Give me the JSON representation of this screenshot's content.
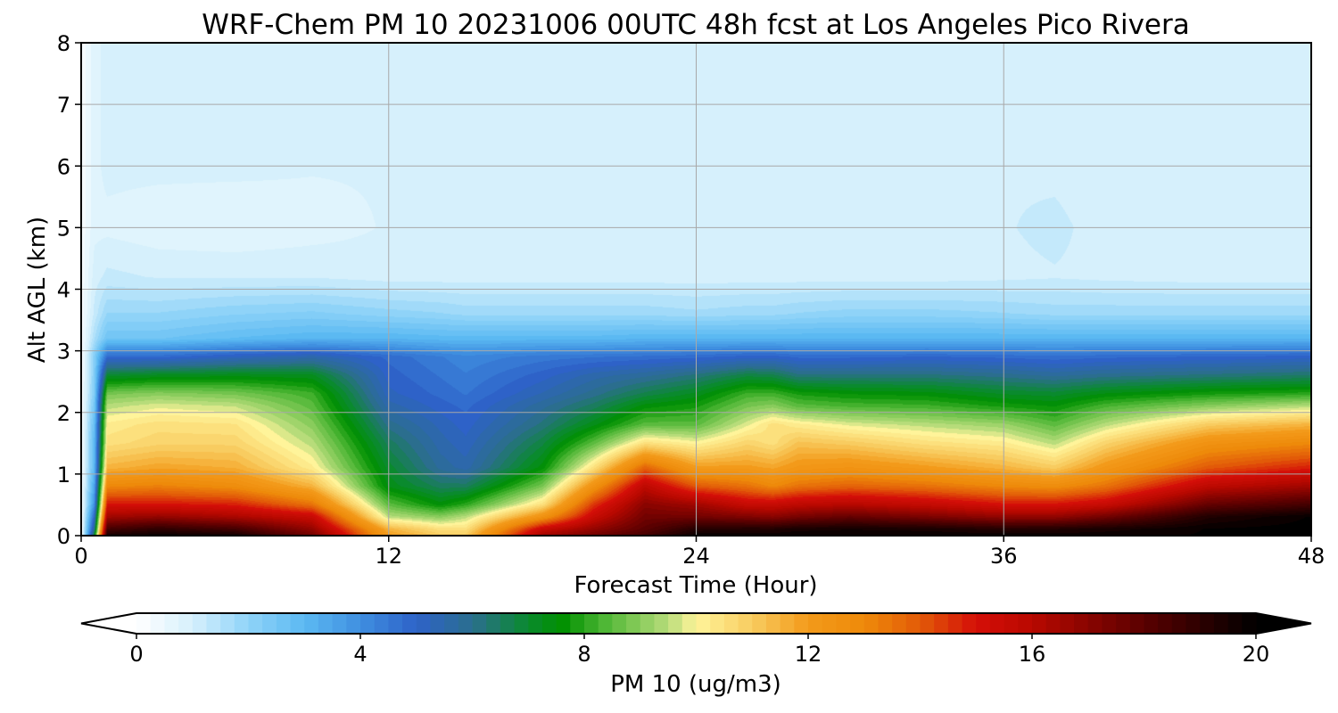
{
  "chart_data": {
    "type": "heatmap",
    "title": "WRF-Chem PM 10  20231006 00UTC 48h fcst at Los Angeles Pico Rivera",
    "xlabel": "Forecast Time (Hour)",
    "ylabel": "Alt AGL (km)",
    "xlim": [
      0,
      48
    ],
    "ylim": [
      0,
      8
    ],
    "x_ticks": [
      "0",
      "12",
      "24",
      "36",
      "48"
    ],
    "y_ticks": [
      "0",
      "1",
      "2",
      "3",
      "4",
      "5",
      "6",
      "7",
      "8"
    ],
    "grid": true,
    "colorbar": {
      "label": "PM 10  (ug/m3)",
      "range": [
        0,
        20
      ],
      "ticks": [
        "0",
        "4",
        "8",
        "12",
        "16",
        "20"
      ],
      "extend": "both",
      "stops": [
        {
          "v": 0,
          "c": "#ffffff"
        },
        {
          "v": 1,
          "c": "#d6f0fc"
        },
        {
          "v": 2,
          "c": "#8fd3f8"
        },
        {
          "v": 3,
          "c": "#5bb9f2"
        },
        {
          "v": 4,
          "c": "#3f8fe0"
        },
        {
          "v": 5,
          "c": "#2e62c8"
        },
        {
          "v": 6,
          "c": "#2b6e8e"
        },
        {
          "v": 7,
          "c": "#0a8a2e"
        },
        {
          "v": 7.6,
          "c": "#009000"
        },
        {
          "v": 8.4,
          "c": "#52b838"
        },
        {
          "v": 9.5,
          "c": "#b7dc7a"
        },
        {
          "v": 10,
          "c": "#fff49a"
        },
        {
          "v": 11,
          "c": "#f8cc60"
        },
        {
          "v": 12,
          "c": "#f39a1a"
        },
        {
          "v": 13,
          "c": "#ee8a0a"
        },
        {
          "v": 14,
          "c": "#e25a08"
        },
        {
          "v": 15,
          "c": "#d40f08"
        },
        {
          "v": 16,
          "c": "#b80800"
        },
        {
          "v": 18,
          "c": "#5a0000"
        },
        {
          "v": 20,
          "c": "#000000"
        }
      ]
    },
    "hours": [
      0,
      0.5,
      1,
      3,
      6,
      9,
      12,
      14,
      15,
      18,
      20,
      22,
      24,
      26,
      27,
      28,
      30,
      33,
      36,
      38,
      40,
      44,
      48
    ],
    "altitudes_km": [
      0,
      0.1,
      0.3,
      0.5,
      0.8,
      1.1,
      1.5,
      1.8,
      2.1,
      2.3,
      2.6,
      2.9,
      3.2,
      3.6,
      4.2,
      5,
      6,
      7,
      8
    ],
    "pm10_ugm3": [
      [
        0.2,
        7,
        19.5,
        19.8,
        19.6,
        17.5,
        12,
        11,
        11,
        16.5,
        17.5,
        18.5,
        19.8,
        19.8,
        19.8,
        19.9,
        19.9,
        19.9,
        19.8,
        19.8,
        19.8,
        19.9,
        20
      ],
      [
        0.2,
        6,
        18.5,
        19,
        18.5,
        16.8,
        11.5,
        10.5,
        10.5,
        15.5,
        16.8,
        18,
        19.2,
        19.3,
        19.3,
        19.5,
        19.6,
        19.5,
        19.2,
        19.3,
        19.5,
        19.9,
        20
      ],
      [
        0.2,
        5,
        16.5,
        16.8,
        16.3,
        15.5,
        9.5,
        9,
        9.5,
        12.5,
        15.5,
        17.5,
        17.5,
        17.2,
        17,
        17.4,
        17.8,
        17.3,
        16.8,
        16.8,
        17.5,
        19.3,
        19.9
      ],
      [
        0.2,
        4,
        15,
        15,
        14.8,
        13.5,
        8.5,
        7.5,
        8,
        10.5,
        14.5,
        17,
        16.5,
        15.5,
        15.5,
        15.8,
        16,
        15.6,
        15,
        15,
        15.5,
        17.8,
        18.5
      ],
      [
        0.2,
        3.5,
        13,
        13.2,
        12.8,
        11.5,
        7.3,
        6.5,
        6.5,
        8.8,
        12.5,
        15.8,
        14,
        13.5,
        13,
        13.5,
        13.8,
        13.5,
        13,
        12.8,
        13.5,
        15.8,
        16.5
      ],
      [
        0.2,
        3,
        11.5,
        11.8,
        11.6,
        10.2,
        7,
        5.8,
        5.5,
        7.5,
        10.5,
        13.8,
        12,
        12,
        11.8,
        12.2,
        12.4,
        12,
        11.5,
        11,
        12.2,
        14,
        14.8
      ],
      [
        0.2,
        3,
        10.5,
        10.8,
        10.8,
        9.5,
        6.5,
        5.5,
        5.2,
        6.8,
        8.5,
        10.5,
        10,
        10.8,
        10.5,
        11.2,
        11,
        10.5,
        10.2,
        9.5,
        10.8,
        12.5,
        13
      ],
      [
        0.2,
        2.8,
        10.2,
        10.5,
        10.4,
        9,
        6,
        5.3,
        5,
        6.2,
        7.3,
        8.5,
        8.5,
        9.8,
        10.5,
        10.2,
        9.8,
        9.5,
        9.2,
        8.5,
        9.5,
        11,
        11.5
      ],
      [
        0.2,
        2.5,
        9.5,
        9.8,
        9.6,
        8.5,
        5.5,
        5,
        4.8,
        5.8,
        6.5,
        7.5,
        7.8,
        8.8,
        9,
        8.5,
        8.3,
        8.2,
        7.8,
        7.6,
        8.3,
        9,
        9.5
      ],
      [
        0.2,
        2.3,
        8.8,
        9,
        8.8,
        8.2,
        5.2,
        4.8,
        4.6,
        5.4,
        6,
        6.7,
        7.2,
        8.2,
        8.2,
        7.8,
        7.6,
        7.5,
        7.1,
        7,
        7.4,
        7.8,
        8
      ],
      [
        0.2,
        2.2,
        7,
        7.2,
        7.3,
        7.2,
        5,
        4.6,
        4.4,
        5,
        5.5,
        5.8,
        6.2,
        6.8,
        6.7,
        6.2,
        6.2,
        6.2,
        6,
        5.8,
        6,
        6.2,
        6.4
      ],
      [
        0.2,
        2.2,
        4.8,
        4.8,
        5.2,
        5.5,
        4.8,
        4.4,
        4.2,
        4.5,
        4.6,
        4.7,
        4.8,
        5,
        5,
        4.8,
        4.8,
        4.9,
        4.8,
        4.7,
        4.8,
        4.9,
        5
      ],
      [
        0.2,
        1.6,
        2.6,
        2.6,
        2.9,
        3.1,
        3.1,
        3,
        3,
        3,
        3,
        3.1,
        3.1,
        3.1,
        3.1,
        3.1,
        3.1,
        3.1,
        3.1,
        3.1,
        3.1,
        3.1,
        3.1
      ],
      [
        0.2,
        1.2,
        1.9,
        1.9,
        2.1,
        2.2,
        2,
        1.9,
        1.8,
        1.8,
        1.8,
        1.8,
        1.7,
        1.8,
        1.8,
        1.9,
        2,
        2,
        1.9,
        1.8,
        1.8,
        1.8,
        1.8
      ],
      [
        0.2,
        1,
        1.2,
        1.1,
        1.1,
        1.1,
        1,
        1,
        1,
        1,
        1,
        1,
        1,
        1,
        1,
        1,
        1,
        1,
        1.05,
        1.1,
        1.05,
        1,
        1
      ],
      [
        0.2,
        0.8,
        0.8,
        0.7,
        0.65,
        0.75,
        0.9,
        0.95,
        0.95,
        0.95,
        0.95,
        0.95,
        0.95,
        0.95,
        0.95,
        0.95,
        1,
        1.05,
        1.1,
        1.2,
        1,
        0.95,
        0.95
      ],
      [
        0.2,
        0.8,
        0.95,
        0.95,
        0.95,
        0.9,
        0.9,
        0.9,
        0.9,
        0.9,
        0.9,
        0.95,
        0.95,
        0.95,
        0.95,
        0.9,
        0.95,
        1.05,
        1.1,
        1.05,
        0.95,
        0.95,
        0.95
      ],
      [
        0.2,
        0.8,
        0.95,
        0.95,
        0.95,
        0.95,
        0.9,
        0.9,
        0.9,
        0.9,
        0.95,
        1,
        1,
        1,
        1,
        0.95,
        0.9,
        0.9,
        0.9,
        0.9,
        0.9,
        0.95,
        1
      ],
      [
        0.2,
        0.8,
        0.95,
        0.95,
        0.95,
        1,
        0.9,
        0.9,
        0.9,
        0.9,
        0.95,
        1,
        1.05,
        1.05,
        1,
        0.95,
        0.9,
        0.9,
        0.9,
        0.9,
        0.9,
        0.95,
        0.95
      ]
    ]
  }
}
